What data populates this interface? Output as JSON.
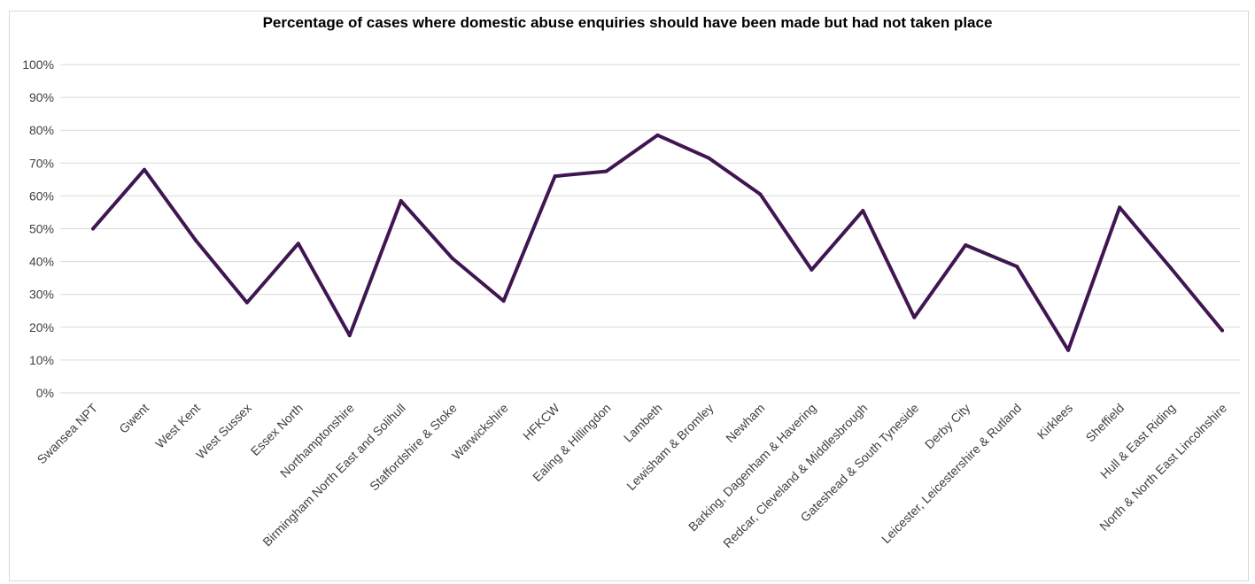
{
  "chart_data": {
    "type": "line",
    "title": "Percentage of cases where domestic abuse enquiries should have been made but had not taken place",
    "xlabel": "",
    "ylabel": "",
    "ylim": [
      0,
      100
    ],
    "yticks": [
      "0%",
      "10%",
      "20%",
      "30%",
      "40%",
      "50%",
      "60%",
      "70%",
      "80%",
      "90%",
      "100%"
    ],
    "grid": true,
    "legend": "none",
    "categories": [
      "Swansea NPT",
      "Gwent",
      "West Kent",
      "West Sussex",
      "Essex North",
      "Northamptonshire",
      "Birmingham North East and Solihull",
      "Staffordshire & Stoke",
      "Warwickshire",
      "HFKCW",
      "Ealing & Hillingdon",
      "Lambeth",
      "Lewisham & Bromley",
      "Newham",
      "Barking, Dagenham & Havering",
      "Redcar, Cleveland & Middlesbrough",
      "Gateshead & South Tyneside",
      "Derby City",
      "Leicester, Leicestershire & Rutland",
      "Kirklees",
      "Sheffield",
      "Hull & East Riding",
      "North & North East Lincolnshire"
    ],
    "series": [
      {
        "values": [
          50,
          68,
          46.5,
          27.5,
          45.5,
          17.5,
          58.5,
          41,
          28,
          66,
          67.5,
          78.5,
          71.5,
          60.5,
          37.5,
          55.5,
          23,
          45,
          38.5,
          13,
          56.5,
          38,
          19
        ],
        "color": "#3f1651"
      }
    ]
  }
}
